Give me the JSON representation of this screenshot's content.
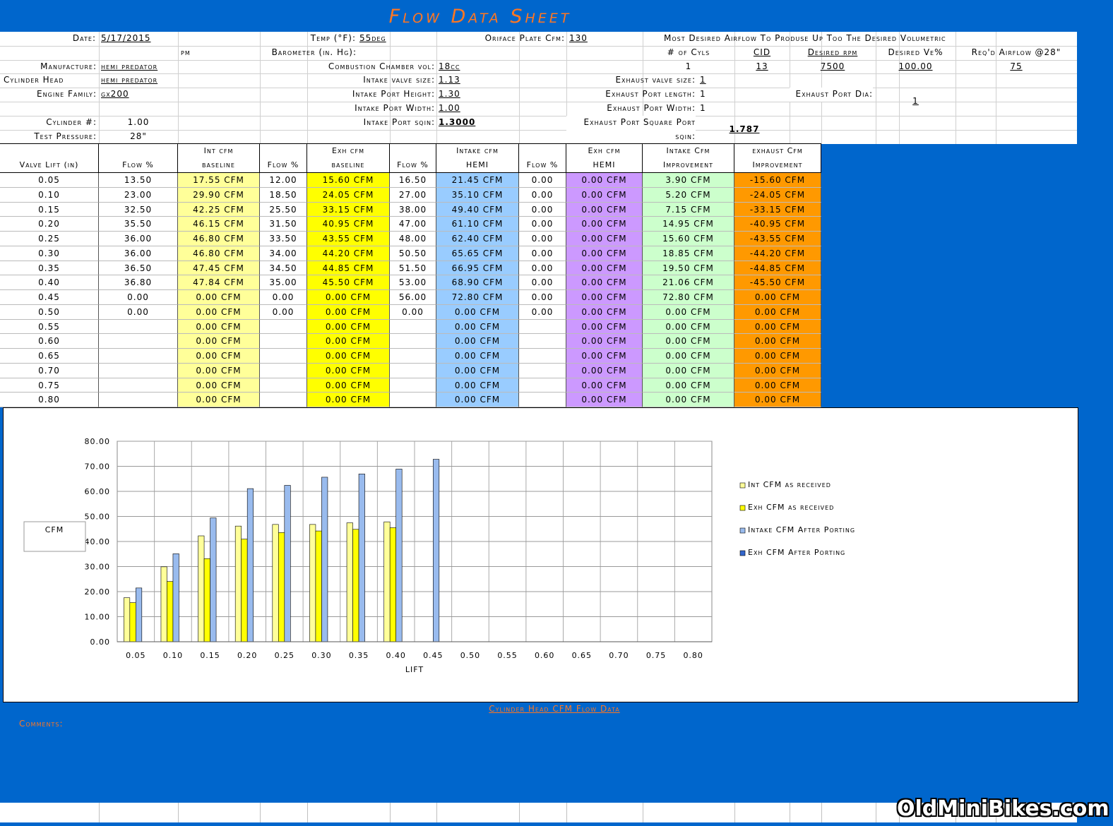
{
  "title": "Flow Data Sheet",
  "header": {
    "date_label": "Date:",
    "date": "5/17/2015",
    "time": "pm",
    "temp_label": "Temp (°F):",
    "temp": "55deg",
    "plate_label": "Oriface Plate Cfm:",
    "plate": "130",
    "airflow_note": "Most Desired Airflow To Produse Up Too The Desired Volumetric",
    "baro_label": "Barometer (in. Hg):",
    "cyls_label": "# of Cyls",
    "cid_label": "CID",
    "rpm_label": "Desired rpm",
    "ve_label": "Desired Ve%",
    "req_label": "Req'd Airflow @28\"",
    "cyls": "1",
    "cid": "13",
    "rpm": "7500",
    "ve": "100.00",
    "req": "75",
    "manufacture_label": "Manufacture:",
    "manufacture": "hemi predator",
    "chamber_label": "Combustion Chamber vol:",
    "chamber": "18cc",
    "head_label": "Cylinder Head",
    "head": "hemi predator",
    "int_valve_label": "Intake valve size:",
    "int_valve": "1.13",
    "exh_valve_label": "Exhaust valve size:",
    "exh_valve": "1",
    "family_label": "Engine Family:",
    "family": "gx200",
    "int_height_label": "Intake Port Height:",
    "int_height": "1.30",
    "exh_length_label": "Exhaust Port length:",
    "exh_length": "1",
    "exh_dia_label": "Exhaust Port Dia:",
    "exh_dia": "1",
    "int_width_label": "Intake Port Width:",
    "int_width": "1.00",
    "exh_width_label": "Exhaust Port Width:",
    "exh_width": "1",
    "cylinder_label": "Cylinder #:",
    "cylinder": "1.00",
    "int_sqin_label": "Intake Port sqin:",
    "int_sqin": "1.3000",
    "exh_sqin_label": "Exhaust Port Square Port sqin:",
    "exh_sqin": "1.787",
    "pressure_label": "Test Pressure:",
    "pressure": "28\""
  },
  "table": {
    "headers": [
      [
        "Valve Lift (in)"
      ],
      [
        "Flow %"
      ],
      [
        "Int cfm",
        "baseline"
      ],
      [
        "Flow %"
      ],
      [
        "Exh cfm",
        "baseline"
      ],
      [
        "Flow %"
      ],
      [
        "Intake cfm",
        "HEMI"
      ],
      [
        "Flow %"
      ],
      [
        "Exh cfm",
        "HEMI"
      ],
      [
        "Intake Cfm",
        "Improvement"
      ],
      [
        "exhaust Cfm",
        "Improvement"
      ]
    ],
    "rows": [
      [
        "0.05",
        "13.50",
        "17.55 CFM",
        "12.00",
        "15.60 CFM",
        "16.50",
        "21.45 CFM",
        "0.00",
        "0.00 CFM",
        "3.90 CFM",
        "-15.60 CFM"
      ],
      [
        "0.10",
        "23.00",
        "29.90 CFM",
        "18.50",
        "24.05 CFM",
        "27.00",
        "35.10 CFM",
        "0.00",
        "0.00 CFM",
        "5.20 CFM",
        "-24.05 CFM"
      ],
      [
        "0.15",
        "32.50",
        "42.25 CFM",
        "25.50",
        "33.15 CFM",
        "38.00",
        "49.40 CFM",
        "0.00",
        "0.00 CFM",
        "7.15 CFM",
        "-33.15 CFM"
      ],
      [
        "0.20",
        "35.50",
        "46.15 CFM",
        "31.50",
        "40.95 CFM",
        "47.00",
        "61.10 CFM",
        "0.00",
        "0.00 CFM",
        "14.95 CFM",
        "-40.95 CFM"
      ],
      [
        "0.25",
        "36.00",
        "46.80 CFM",
        "33.50",
        "43.55 CFM",
        "48.00",
        "62.40 CFM",
        "0.00",
        "0.00 CFM",
        "15.60 CFM",
        "-43.55 CFM"
      ],
      [
        "0.30",
        "36.00",
        "46.80 CFM",
        "34.00",
        "44.20 CFM",
        "50.50",
        "65.65 CFM",
        "0.00",
        "0.00 CFM",
        "18.85 CFM",
        "-44.20 CFM"
      ],
      [
        "0.35",
        "36.50",
        "47.45 CFM",
        "34.50",
        "44.85 CFM",
        "51.50",
        "66.95 CFM",
        "0.00",
        "0.00 CFM",
        "19.50 CFM",
        "-44.85 CFM"
      ],
      [
        "0.40",
        "36.80",
        "47.84 CFM",
        "35.00",
        "45.50 CFM",
        "53.00",
        "68.90 CFM",
        "0.00",
        "0.00 CFM",
        "21.06 CFM",
        "-45.50 CFM"
      ],
      [
        "0.45",
        "0.00",
        "0.00 CFM",
        "0.00",
        "0.00 CFM",
        "56.00",
        "72.80 CFM",
        "0.00",
        "0.00 CFM",
        "72.80 CFM",
        "0.00 CFM"
      ],
      [
        "0.50",
        "0.00",
        "0.00 CFM",
        "0.00",
        "0.00 CFM",
        "0.00",
        "0.00 CFM",
        "0.00",
        "0.00 CFM",
        "0.00 CFM",
        "0.00 CFM"
      ],
      [
        "0.55",
        null,
        "0.00 CFM",
        null,
        "0.00 CFM",
        null,
        "0.00 CFM",
        null,
        "0.00 CFM",
        "0.00 CFM",
        "0.00 CFM"
      ],
      [
        "0.60",
        null,
        "0.00 CFM",
        null,
        "0.00 CFM",
        null,
        "0.00 CFM",
        null,
        "0.00 CFM",
        "0.00 CFM",
        "0.00 CFM"
      ],
      [
        "0.65",
        null,
        "0.00 CFM",
        null,
        "0.00 CFM",
        null,
        "0.00 CFM",
        null,
        "0.00 CFM",
        "0.00 CFM",
        "0.00 CFM"
      ],
      [
        "0.70",
        null,
        "0.00 CFM",
        null,
        "0.00 CFM",
        null,
        "0.00 CFM",
        null,
        "0.00 CFM",
        "0.00 CFM",
        "0.00 CFM"
      ],
      [
        "0.75",
        null,
        "0.00 CFM",
        null,
        "0.00 CFM",
        null,
        "0.00 CFM",
        null,
        "0.00 CFM",
        "0.00 CFM",
        "0.00 CFM"
      ],
      [
        "0.80",
        null,
        "0.00 CFM",
        null,
        "0.00 CFM",
        null,
        "0.00 CFM",
        null,
        "0.00 CFM",
        "0.00 CFM",
        "0.00 CFM"
      ]
    ]
  },
  "chart_data": {
    "type": "bar",
    "x_label": "LIFT",
    "y_label": "CFM",
    "categories": [
      "0.05",
      "0.10",
      "0.15",
      "0.20",
      "0.25",
      "0.30",
      "0.35",
      "0.40",
      "0.45",
      "0.50",
      "0.55",
      "0.60",
      "0.65",
      "0.70",
      "0.75",
      "0.80"
    ],
    "series": [
      {
        "name": "Int CFM as received",
        "color": "#ffff99",
        "values": [
          17.55,
          29.9,
          42.25,
          46.15,
          46.8,
          46.8,
          47.45,
          47.84,
          0,
          0,
          0,
          0,
          0,
          0,
          0,
          0
        ]
      },
      {
        "name": "Exh CFM as received",
        "color": "#ffff00",
        "values": [
          15.6,
          24.05,
          33.15,
          40.95,
          43.55,
          44.2,
          44.85,
          45.5,
          0,
          0,
          0,
          0,
          0,
          0,
          0,
          0
        ]
      },
      {
        "name": "Intake CFM After Porting",
        "color": "#99bbee",
        "values": [
          21.45,
          35.1,
          49.4,
          61.1,
          62.4,
          65.65,
          66.95,
          68.9,
          72.8,
          0,
          0,
          0,
          0,
          0,
          0,
          0
        ]
      },
      {
        "name": "Exh CFM After Porting",
        "color": "#3366cc",
        "values": [
          0,
          0,
          0,
          0,
          0,
          0,
          0,
          0,
          0,
          0,
          0,
          0,
          0,
          0,
          0,
          0
        ]
      }
    ],
    "ylim": [
      0,
      80
    ],
    "yticks": [
      {
        "value": 0,
        "label": "0.00"
      },
      {
        "value": 10,
        "label": "10.00"
      },
      {
        "value": 20,
        "label": "20.00"
      },
      {
        "value": 30,
        "label": "30.00"
      },
      {
        "value": 40,
        "label": "40.00"
      },
      {
        "value": 50,
        "label": "50.00"
      },
      {
        "value": 60,
        "label": "60.00"
      },
      {
        "value": 70,
        "label": "70.00"
      },
      {
        "value": 80,
        "label": "80.00"
      }
    ],
    "grid": true,
    "legend": "right"
  },
  "footer": {
    "chart_caption": "Cylinder Head CFM Flow Data",
    "comments_label": "Comments:",
    "watermark": "OldMiniBikes.com"
  }
}
